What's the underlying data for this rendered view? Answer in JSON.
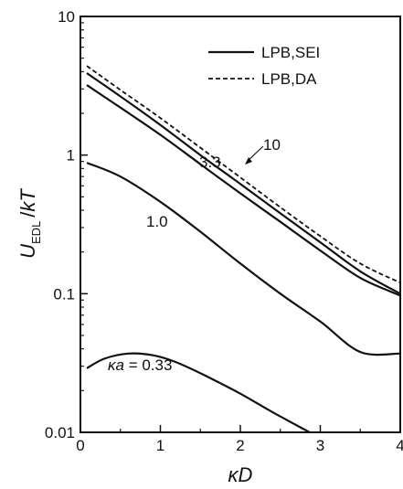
{
  "chart_data": {
    "type": "line",
    "xlabel": "κD",
    "ylabel": "U_EDL /kT",
    "xlim": [
      0,
      4
    ],
    "ylim": [
      0.01,
      10
    ],
    "yscale": "log",
    "grid": false,
    "legend_position": "top-right",
    "x_ticks": [
      "0",
      "1",
      "2",
      "3",
      "4"
    ],
    "y_ticks": [
      "0.01",
      "0.1",
      "1",
      "10"
    ],
    "legend": [
      {
        "label": "LPB,SEI",
        "style": "solid"
      },
      {
        "label": "LPB,DA",
        "style": "dashed"
      }
    ],
    "series": [
      {
        "curve_label": "κa = 0.33",
        "method": "LPB,SEI",
        "style": "solid",
        "color": "#111111",
        "x": [
          0.08,
          0.3,
          0.6,
          0.9,
          1.2,
          1.6,
          2.0,
          2.4,
          2.8,
          3.1
        ],
        "y": [
          0.029,
          0.034,
          0.037,
          0.036,
          0.032,
          0.025,
          0.019,
          0.014,
          0.0105,
          0.0085
        ]
      },
      {
        "curve_label": "1.0",
        "method": "LPB,SEI",
        "style": "solid",
        "color": "#111111",
        "x": [
          0.08,
          0.5,
          1.0,
          1.5,
          2.0,
          2.5,
          3.0,
          3.5,
          4.0
        ],
        "y": [
          0.88,
          0.7,
          0.46,
          0.28,
          0.165,
          0.1,
          0.063,
          0.038,
          0.037
        ]
      },
      {
        "curve_label": "3.3",
        "method": "LPB,SEI",
        "style": "solid",
        "color": "#111111",
        "x": [
          0.08,
          0.5,
          1.0,
          1.5,
          2.0,
          2.5,
          3.0,
          3.5,
          4.0
        ],
        "y": [
          3.2,
          2.2,
          1.4,
          0.86,
          0.53,
          0.33,
          0.205,
          0.13,
          0.097
        ]
      },
      {
        "curve_label": "10",
        "method": "LPB,SEI",
        "style": "solid",
        "color": "#111111",
        "x": [
          0.08,
          0.5,
          1.0,
          1.5,
          2.0,
          2.5,
          3.0,
          3.5,
          4.0
        ],
        "y": [
          3.9,
          2.65,
          1.65,
          1.0,
          0.62,
          0.38,
          0.235,
          0.145,
          0.1
        ]
      },
      {
        "curve_label": "",
        "method": "LPB,DA",
        "style": "dashed",
        "color": "#111111",
        "x": [
          0.08,
          0.5,
          1.0,
          1.5,
          2.0,
          2.5,
          3.0,
          3.5,
          4.0
        ],
        "y": [
          4.4,
          2.95,
          1.85,
          1.13,
          0.69,
          0.42,
          0.26,
          0.165,
          0.12
        ]
      }
    ],
    "annotations": [
      {
        "text": "10",
        "target_series": 3,
        "arrow": true
      },
      {
        "text": "3.3",
        "target_series": 2,
        "arrow": false
      },
      {
        "text": "1.0",
        "target_series": 1,
        "arrow": false
      },
      {
        "text": "κa = 0.33",
        "target_series": 0,
        "arrow": false
      }
    ]
  }
}
